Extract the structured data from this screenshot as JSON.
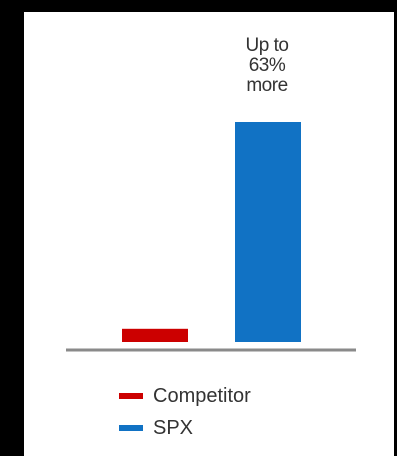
{
  "chart_data": {
    "type": "bar",
    "categories": [
      "Competitor",
      "SPX"
    ],
    "values": [
      6,
      100
    ],
    "ylim": [
      0,
      100
    ],
    "grid": false,
    "legend_position": "bottom",
    "annotation": [
      "Up to",
      "63%",
      "more"
    ],
    "title": "",
    "xlabel": "",
    "ylabel": "",
    "series_colors": [
      "#cc0000",
      "#1172c4"
    ],
    "axis_color": "#8a8a8a"
  }
}
